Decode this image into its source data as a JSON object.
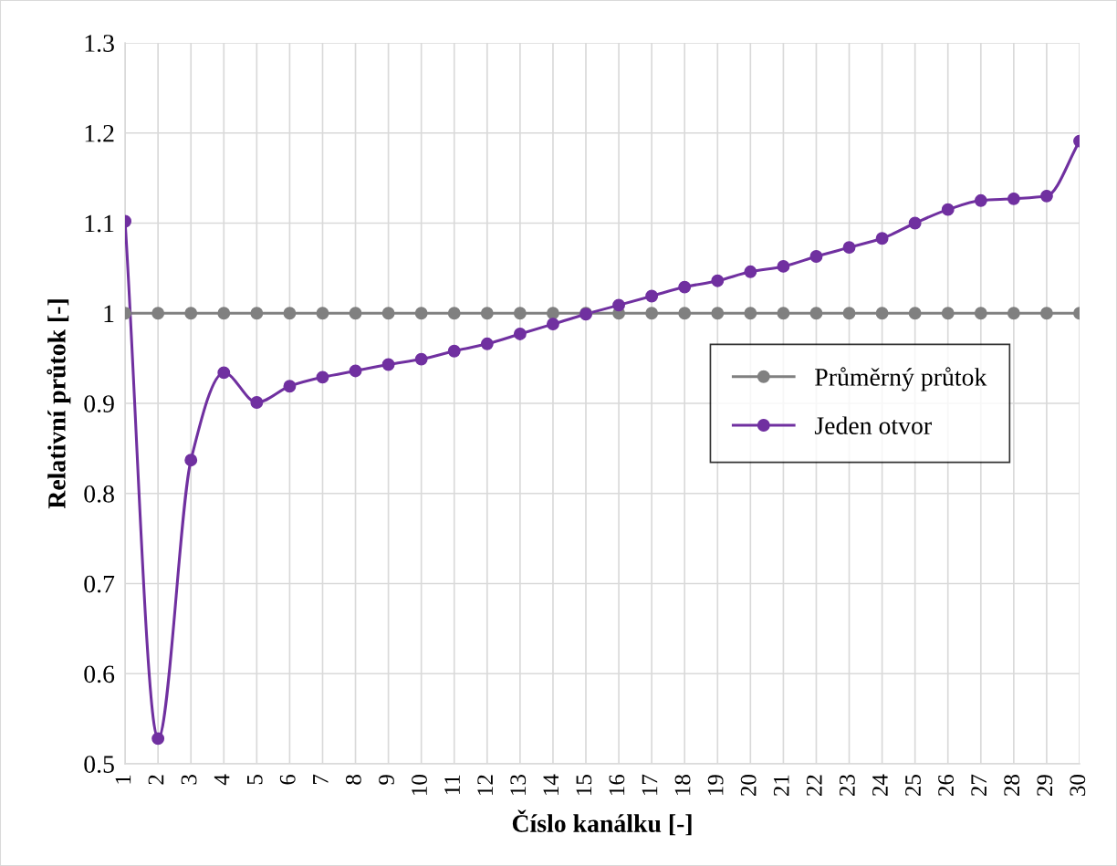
{
  "chart_data": {
    "type": "line",
    "xlabel": "Číslo kanálku [-]",
    "ylabel": "Relativní průtok [-]",
    "categories": [
      "1",
      "2",
      "3",
      "4",
      "5",
      "6",
      "7",
      "8",
      "9",
      "10",
      "11",
      "12",
      "13",
      "14",
      "15",
      "16",
      "17",
      "18",
      "19",
      "20",
      "21",
      "22",
      "23",
      "24",
      "25",
      "26",
      "27",
      "28",
      "29",
      "30"
    ],
    "series": [
      {
        "name": "Průměrný průtok",
        "color": "#808080",
        "values": [
          1,
          1,
          1,
          1,
          1,
          1,
          1,
          1,
          1,
          1,
          1,
          1,
          1,
          1,
          1,
          1,
          1,
          1,
          1,
          1,
          1,
          1,
          1,
          1,
          1,
          1,
          1,
          1,
          1,
          1
        ]
      },
      {
        "name": "Jeden otvor",
        "color": "#7030a0",
        "values": [
          1.102,
          0.528,
          0.837,
          0.934,
          0.901,
          0.919,
          0.929,
          0.936,
          0.943,
          0.949,
          0.958,
          0.966,
          0.977,
          0.988,
          0.999,
          1.009,
          1.019,
          1.029,
          1.036,
          1.046,
          1.052,
          1.063,
          1.073,
          1.083,
          1.1,
          1.115,
          1.125,
          1.127,
          1.13,
          1.191
        ]
      }
    ],
    "ylim": [
      0.5,
      1.3
    ],
    "yticks": [
      {
        "value": 0.5,
        "label": "0.5"
      },
      {
        "value": 0.6,
        "label": "0.6"
      },
      {
        "value": 0.7,
        "label": "0.7"
      },
      {
        "value": 0.8,
        "label": "0.8"
      },
      {
        "value": 0.9,
        "label": "0.9"
      },
      {
        "value": 1,
        "label": "1"
      },
      {
        "value": 1.1,
        "label": "1.1"
      },
      {
        "value": 1.2,
        "label": "1.2"
      },
      {
        "value": 1.3,
        "label": "1.3"
      }
    ],
    "grid": true,
    "legend": "right",
    "marker": "circle",
    "line_style": "solid"
  }
}
